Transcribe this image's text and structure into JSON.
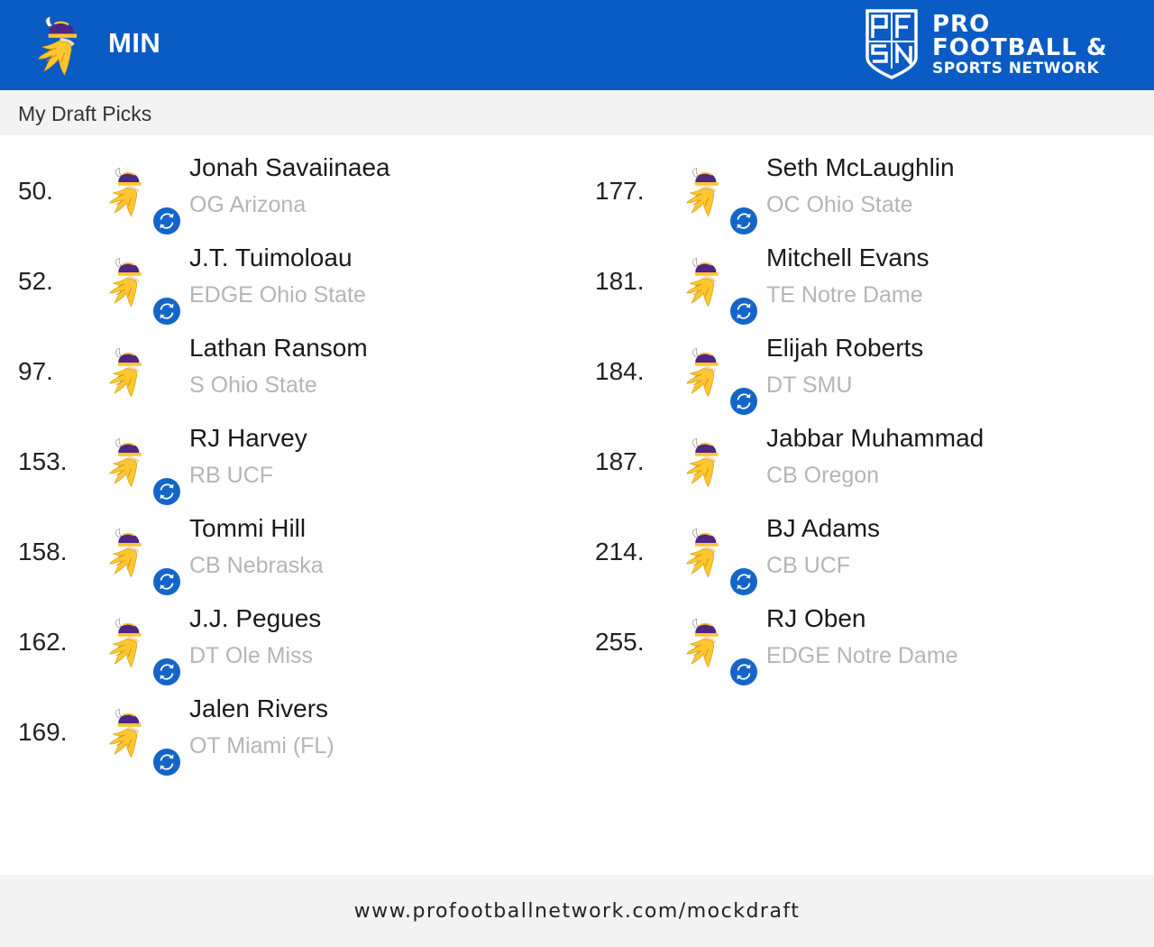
{
  "header": {
    "team_abbr": "MIN",
    "team_logo_icon": "vikings-logo-icon",
    "brand": {
      "logo_icon": "pfsn-shield-icon",
      "line1": "PRO",
      "line2": "FOOTBALL &",
      "line3": "SPORTS NETWORK"
    }
  },
  "subheader": {
    "title": "My Draft Picks"
  },
  "colors": {
    "brand_blue": "#0a5bc4",
    "swap_icon_blue": "#1565c8",
    "muted_text": "#b5b5b5"
  },
  "picks": [
    {
      "number": "50.",
      "name": "Jonah Savaiinaea",
      "meta": "OG Arizona",
      "traded": true
    },
    {
      "number": "52.",
      "name": "J.T. Tuimoloau",
      "meta": "EDGE Ohio State",
      "traded": true
    },
    {
      "number": "97.",
      "name": "Lathan Ransom",
      "meta": "S Ohio State",
      "traded": false
    },
    {
      "number": "153.",
      "name": "RJ Harvey",
      "meta": "RB UCF",
      "traded": true
    },
    {
      "number": "158.",
      "name": "Tommi Hill",
      "meta": "CB Nebraska",
      "traded": true
    },
    {
      "number": "162.",
      "name": "J.J. Pegues",
      "meta": "DT Ole Miss",
      "traded": true
    },
    {
      "number": "169.",
      "name": "Jalen Rivers",
      "meta": "OT Miami (FL)",
      "traded": true
    },
    {
      "number": "177.",
      "name": "Seth McLaughlin",
      "meta": "OC Ohio State",
      "traded": true
    },
    {
      "number": "181.",
      "name": "Mitchell Evans",
      "meta": "TE Notre Dame",
      "traded": true
    },
    {
      "number": "184.",
      "name": "Elijah Roberts",
      "meta": "DT SMU",
      "traded": true
    },
    {
      "number": "187.",
      "name": "Jabbar Muhammad",
      "meta": "CB Oregon",
      "traded": false
    },
    {
      "number": "214.",
      "name": "BJ Adams",
      "meta": "CB UCF",
      "traded": true
    },
    {
      "number": "255.",
      "name": "RJ Oben",
      "meta": "EDGE Notre Dame",
      "traded": true
    }
  ],
  "footer": {
    "url": "www.profootballnetwork.com/mockdraft"
  }
}
